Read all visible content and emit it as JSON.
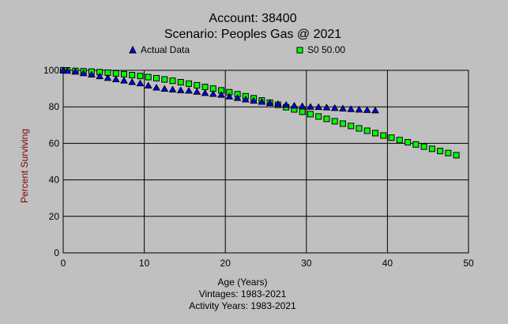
{
  "chart_data": {
    "type": "scatter",
    "title": "Account: 38400",
    "subtitle": "Scenario: Peoples Gas @ 2021",
    "xlabel": "Age (Years)",
    "ylabel": "Percent Surviving",
    "footer": [
      "Vintages: 1983-2021",
      "Activity Years: 1983-2021"
    ],
    "xlim": [
      0,
      50
    ],
    "ylim": [
      0,
      100
    ],
    "xticks": [
      0,
      10,
      20,
      30,
      40,
      50
    ],
    "yticks": [
      0,
      20,
      40,
      60,
      80,
      100
    ],
    "grid": true,
    "legend_placement": "top",
    "colors": {
      "background": "#c0c0c0",
      "actual": "#0000ff",
      "s0": "#00ff00",
      "ylabel": "#800000"
    },
    "series": [
      {
        "name": "Actual Data",
        "marker": "triangle",
        "x": [
          0,
          0.5,
          1.5,
          2.5,
          3.5,
          4.5,
          5.5,
          6.5,
          7.5,
          8.5,
          9.5,
          10.5,
          11.5,
          12.5,
          13.5,
          14.5,
          15.5,
          16.5,
          17.5,
          18.5,
          19.5,
          20.5,
          21.5,
          22.5,
          23.5,
          24.5,
          25.5,
          26.5,
          27.5,
          28.5,
          29.5,
          30.5,
          31.5,
          32.5,
          33.5,
          34.5,
          35.5,
          36.5,
          37.5,
          38.5
        ],
        "y": [
          100,
          99.7,
          99.2,
          98.4,
          97.6,
          96.7,
          95.8,
          95.0,
          94.3,
          93.5,
          92.8,
          91.6,
          90.5,
          89.8,
          89.4,
          89.0,
          88.8,
          88.2,
          87.5,
          87.0,
          86.5,
          85.6,
          84.8,
          84.0,
          83.3,
          82.7,
          82.0,
          81.5,
          81.0,
          80.6,
          80.3,
          80.0,
          79.8,
          79.6,
          79.3,
          79.0,
          78.7,
          78.4,
          78.2,
          78.0
        ]
      },
      {
        "name": "S0 50.00",
        "marker": "square",
        "x": [
          0,
          0.5,
          1.5,
          2.5,
          3.5,
          4.5,
          5.5,
          6.5,
          7.5,
          8.5,
          9.5,
          10.5,
          11.5,
          12.5,
          13.5,
          14.5,
          15.5,
          16.5,
          17.5,
          18.5,
          19.5,
          20.5,
          21.5,
          22.5,
          23.5,
          24.5,
          25.5,
          26.5,
          27.5,
          28.5,
          29.5,
          30.5,
          31.5,
          32.5,
          33.5,
          34.5,
          35.5,
          36.5,
          37.5,
          38.5,
          39.5,
          40.5,
          41.5,
          42.5,
          43.5,
          44.5,
          45.5,
          46.5,
          47.5,
          48.5
        ],
        "y": [
          100,
          100,
          99.7,
          99.5,
          99.3,
          99.0,
          98.7,
          98.3,
          97.9,
          97.4,
          96.9,
          96.3,
          95.7,
          95.0,
          94.3,
          93.5,
          92.7,
          91.8,
          90.9,
          90.0,
          89.0,
          88.0,
          86.9,
          85.8,
          84.7,
          83.5,
          82.3,
          81.1,
          79.8,
          78.6,
          77.3,
          76.0,
          74.7,
          73.4,
          72.1,
          70.8,
          69.5,
          68.2,
          66.9,
          65.6,
          64.3,
          63.1,
          61.8,
          60.6,
          59.4,
          58.2,
          57.0,
          55.8,
          54.7,
          53.5
        ]
      }
    ]
  }
}
